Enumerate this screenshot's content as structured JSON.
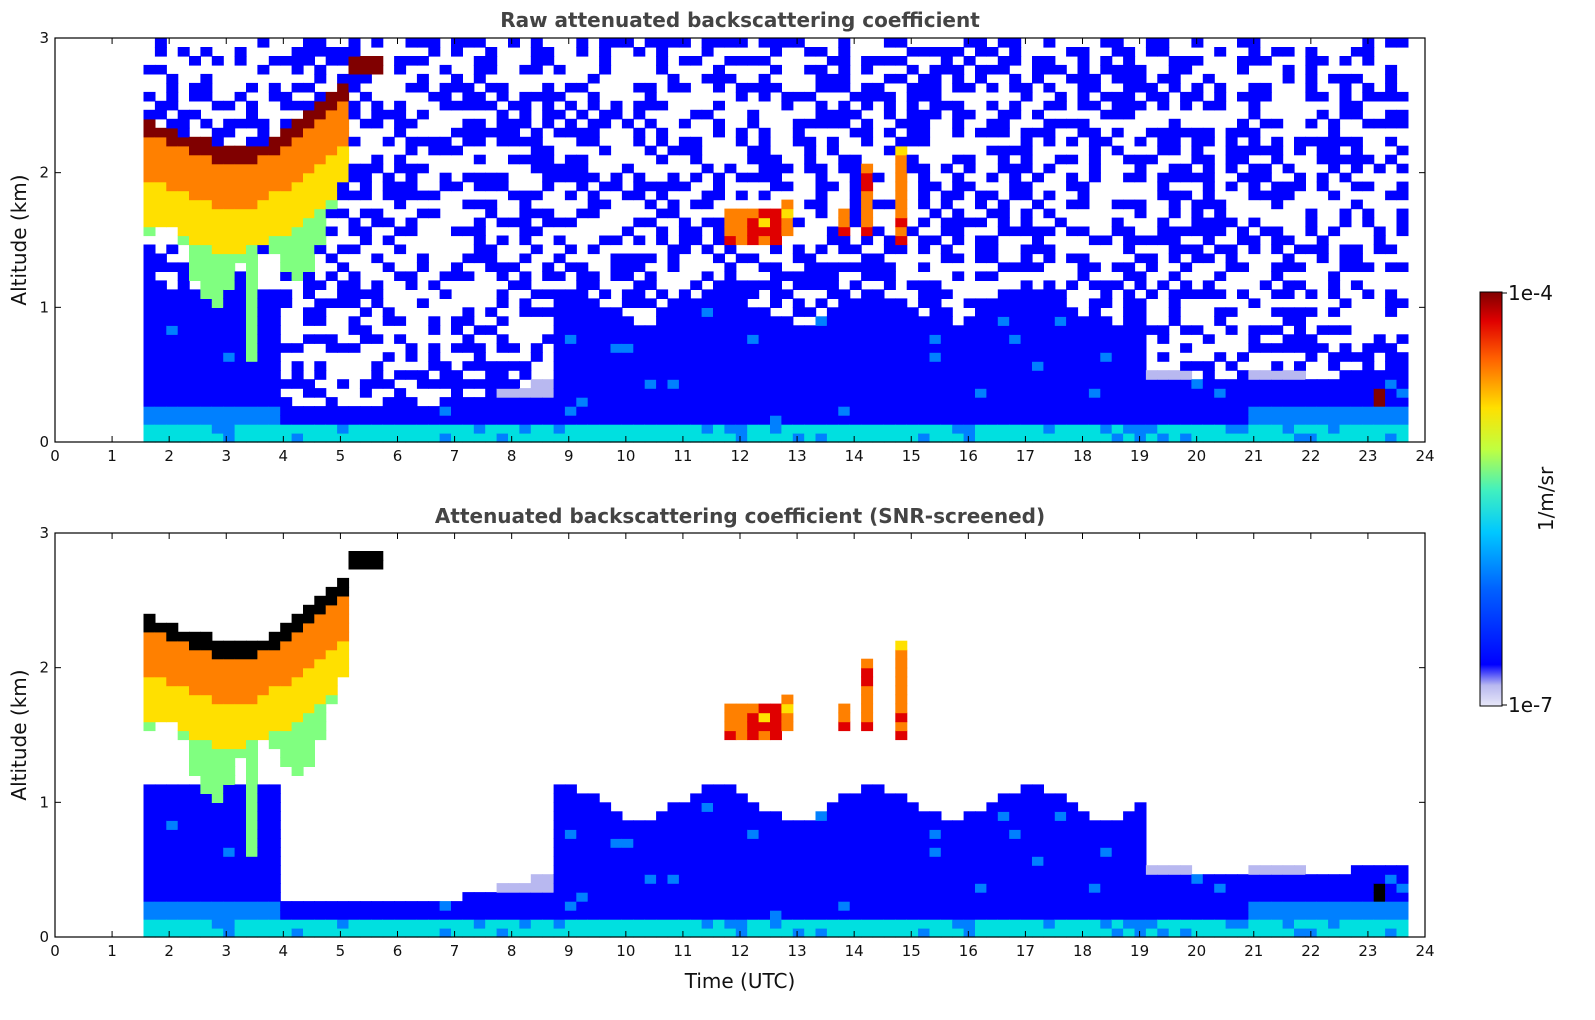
{
  "chart_data": [
    {
      "type": "heatmap",
      "title": "Raw attenuated backscattering coefficient",
      "xlabel": "",
      "ylabel": "Altitude (km)",
      "xlim": [
        0,
        24
      ],
      "ylim": [
        0,
        3
      ],
      "xticks": [
        "0",
        "1",
        "2",
        "3",
        "4",
        "5",
        "6",
        "7",
        "8",
        "9",
        "10",
        "11",
        "12",
        "13",
        "14",
        "15",
        "16",
        "17",
        "18",
        "19",
        "20",
        "21",
        "22",
        "23",
        "24"
      ],
      "yticks": [
        "0",
        "1",
        "2",
        "3"
      ],
      "data_time_range": [
        1.55,
        23.7
      ],
      "screened": false
    },
    {
      "type": "heatmap",
      "title": "Attenuated backscattering coefficient (SNR-screened)",
      "xlabel": "Time (UTC)",
      "ylabel": "Altitude (km)",
      "xlim": [
        0,
        24
      ],
      "ylim": [
        0,
        3
      ],
      "xticks": [
        "0",
        "1",
        "2",
        "3",
        "4",
        "5",
        "6",
        "7",
        "8",
        "9",
        "10",
        "11",
        "12",
        "13",
        "14",
        "15",
        "16",
        "17",
        "18",
        "19",
        "20",
        "21",
        "22",
        "23",
        "24"
      ],
      "yticks": [
        "0",
        "1",
        "2",
        "3"
      ],
      "data_time_range": [
        1.55,
        23.7
      ],
      "screened": true
    }
  ],
  "colorbar": {
    "label": "1/m/sr",
    "max_label": "1e-4",
    "min_label": "1e-7",
    "colors": [
      "#e8e8f8",
      "#b8b8f0",
      "#0000ff",
      "#0080ff",
      "#00e0e0",
      "#80ff80",
      "#ffe000",
      "#ff8000",
      "#e00000",
      "#800000"
    ]
  },
  "features": {
    "cirrus_layer": {
      "time": [
        1.55,
        5.8
      ],
      "altitude_km": [
        2.1,
        2.9
      ]
    },
    "boundary_layer_top_km": 0.45,
    "mid_level_clouds": {
      "time": [
        11.7,
        15.0
      ],
      "altitude_km": [
        1.4,
        2.2
      ]
    },
    "low_cloud": {
      "time": 23.2,
      "altitude_km": 0.35
    }
  }
}
